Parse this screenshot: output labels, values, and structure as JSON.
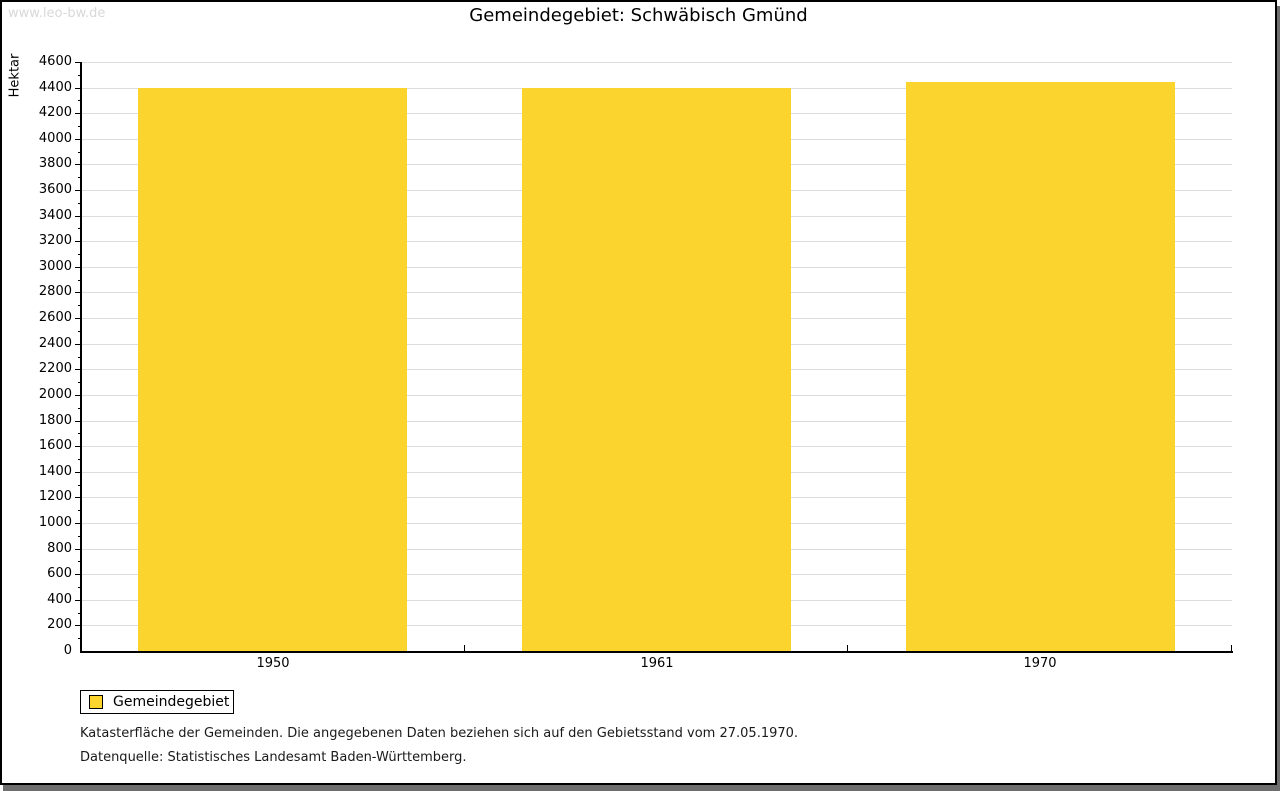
{
  "watermark": "www.leo-bw.de",
  "title": "Gemeindegebiet: Schwäbisch Gmünd",
  "chart_data": {
    "type": "bar",
    "title": "Gemeindegebiet: Schwäbisch Gmünd",
    "ylabel": "Hektar",
    "xlabel": "",
    "categories": [
      "1950",
      "1961",
      "1970"
    ],
    "series": [
      {
        "name": "Gemeindegebiet",
        "values": [
          4400,
          4400,
          4440
        ]
      }
    ],
    "ylim": [
      0,
      4600
    ],
    "ytick_step": 200,
    "minor_tick_step": 100,
    "grid": true,
    "legend_position": "bottom-left",
    "bar_color": "#FCD42E",
    "gridline_color": "#DCDCDC"
  },
  "legend": {
    "items": [
      {
        "label": "Gemeindegebiet",
        "color": "#FCD42E"
      }
    ]
  },
  "footnotes": [
    "Katasterfläche der Gemeinden. Die angegebenen Daten beziehen sich auf den Gebietsstand vom 27.05.1970.",
    "Datenquelle: Statistisches Landesamt Baden-Württemberg."
  ],
  "colors": {
    "bar": "#FCD42E",
    "gridline": "#DCDCDC",
    "watermark": "#D8D8D8",
    "frame_shadow": "#6E6E6E",
    "axis": "#000000"
  }
}
